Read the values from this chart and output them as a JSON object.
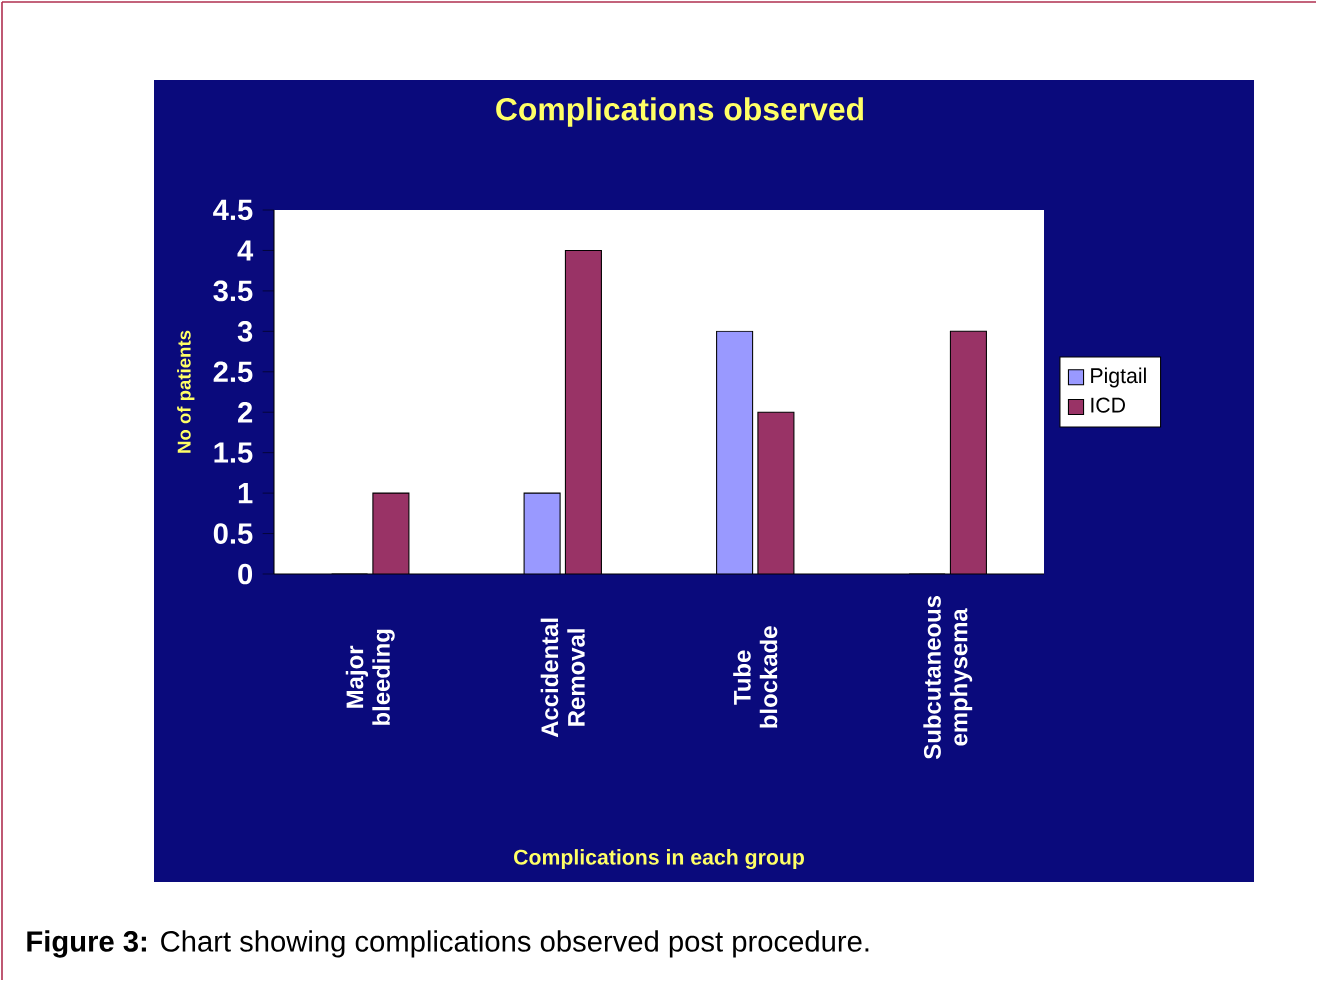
{
  "chart_data": {
    "type": "bar",
    "title": "Complications observed",
    "xlabel": "Complications in each group",
    "ylabel": "No of patients",
    "categories": [
      "Major bleeding",
      "Accidental Removal",
      "Tube blockade",
      "Subcutaneous emphysema"
    ],
    "series": [
      {
        "name": "Pigtail",
        "color": "#9999ff",
        "values": [
          0,
          1,
          3,
          0
        ]
      },
      {
        "name": "ICD",
        "color": "#993366",
        "values": [
          1,
          4,
          2,
          3
        ]
      }
    ],
    "ylim": [
      0,
      4.5
    ],
    "yticks": [
      0,
      0.5,
      1,
      1.5,
      2,
      2.5,
      3,
      3.5,
      4,
      4.5
    ],
    "grid": false,
    "legend": "right",
    "annotations": [
      "**Figure 3:** Chart showing complications observed post procedure."
    ]
  }
}
